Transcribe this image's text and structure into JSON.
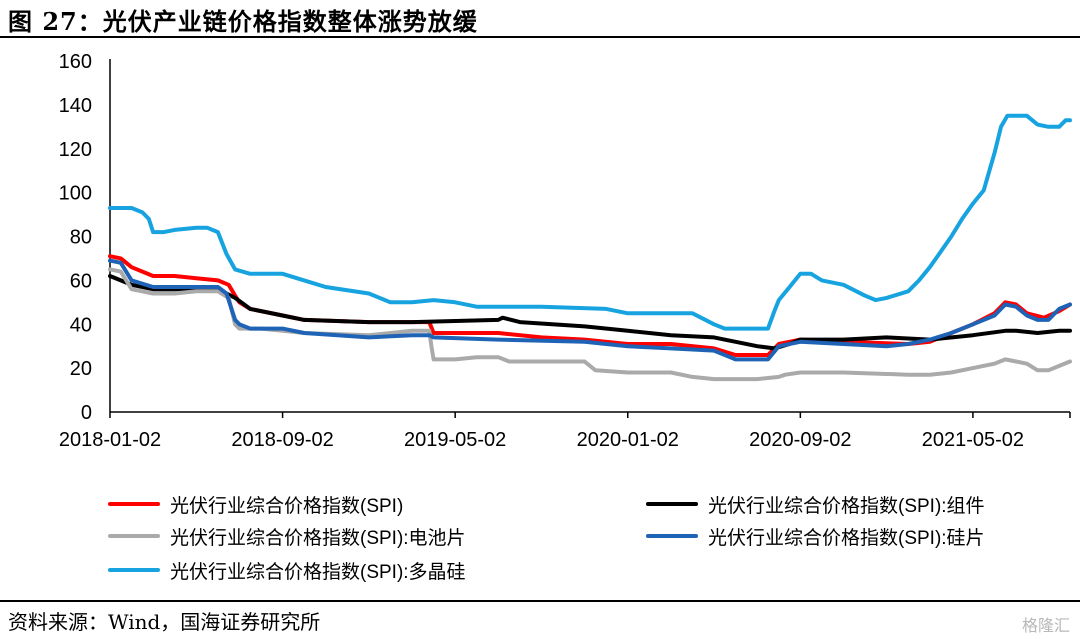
{
  "title": "图 27：光伏产业链价格指数整体涨势放缓",
  "source": "资料来源：Wind，国海证券研究所",
  "watermark": "格隆汇",
  "chart_data": {
    "type": "line",
    "y_ticks": [
      "0",
      "20",
      "40",
      "60",
      "80",
      "100",
      "120",
      "140",
      "160"
    ],
    "ylim": [
      0,
      160
    ],
    "x_ticks": [
      "2018-01-02",
      "2018-09-02",
      "2019-05-02",
      "2020-01-02",
      "2020-09-02",
      "2021-05-02"
    ],
    "x_tick_positions": [
      0,
      8,
      16,
      24,
      32,
      40
    ],
    "x_range": [
      0,
      44.5
    ],
    "grid": false,
    "legend_placement": "bottom",
    "series": [
      {
        "name": "光伏行业综合价格指数(SPI)",
        "color": "#ff0000",
        "points": [
          [
            0,
            71
          ],
          [
            0.5,
            70
          ],
          [
            1,
            66
          ],
          [
            2,
            62
          ],
          [
            3,
            62
          ],
          [
            4,
            61
          ],
          [
            5,
            60
          ],
          [
            5.5,
            58
          ],
          [
            5.8,
            53
          ],
          [
            6,
            50
          ],
          [
            6.5,
            47
          ],
          [
            8,
            44
          ],
          [
            9,
            42
          ],
          [
            12,
            41
          ],
          [
            14,
            41
          ],
          [
            14.8,
            41
          ],
          [
            15,
            36
          ],
          [
            17,
            36
          ],
          [
            18,
            36
          ],
          [
            20,
            34
          ],
          [
            22,
            33
          ],
          [
            24,
            31
          ],
          [
            26,
            31
          ],
          [
            28,
            29
          ],
          [
            29,
            26
          ],
          [
            30.5,
            26
          ],
          [
            31,
            31
          ],
          [
            32,
            33
          ],
          [
            34,
            32
          ],
          [
            37,
            31
          ],
          [
            38,
            32
          ],
          [
            39,
            36
          ],
          [
            40,
            40
          ],
          [
            41,
            45
          ],
          [
            41.5,
            50
          ],
          [
            42,
            49
          ],
          [
            42.5,
            45
          ],
          [
            43.3,
            43
          ],
          [
            44,
            46
          ],
          [
            44.5,
            49
          ]
        ]
      },
      {
        "name": "光伏行业综合价格指数(SPI):组件",
        "color": "#000000",
        "points": [
          [
            0,
            62
          ],
          [
            1,
            58
          ],
          [
            2,
            56
          ],
          [
            3,
            56
          ],
          [
            4,
            56
          ],
          [
            5,
            56
          ],
          [
            5.8,
            52
          ],
          [
            6.5,
            47
          ],
          [
            8,
            44
          ],
          [
            9,
            42
          ],
          [
            12,
            41
          ],
          [
            14,
            41
          ],
          [
            18,
            42
          ],
          [
            18.2,
            43
          ],
          [
            19,
            41
          ],
          [
            22,
            39
          ],
          [
            24,
            37
          ],
          [
            26,
            35
          ],
          [
            28,
            34
          ],
          [
            29,
            32
          ],
          [
            30,
            30
          ],
          [
            30.8,
            29
          ],
          [
            31.5,
            31
          ],
          [
            32,
            33
          ],
          [
            34,
            33
          ],
          [
            36,
            34
          ],
          [
            38,
            33
          ],
          [
            40,
            35
          ],
          [
            41.5,
            37
          ],
          [
            42,
            37
          ],
          [
            43,
            36
          ],
          [
            44,
            37
          ],
          [
            44.5,
            37
          ]
        ]
      },
      {
        "name": "光伏行业综合价格指数(SPI):电池片",
        "color": "#aaaaaa",
        "points": [
          [
            0,
            65
          ],
          [
            0.5,
            64
          ],
          [
            1,
            56
          ],
          [
            2,
            54
          ],
          [
            3,
            54
          ],
          [
            4,
            55
          ],
          [
            5,
            55
          ],
          [
            5.5,
            52
          ],
          [
            5.8,
            40
          ],
          [
            6,
            38
          ],
          [
            7,
            38
          ],
          [
            8,
            37
          ],
          [
            9,
            36
          ],
          [
            12,
            35
          ],
          [
            14,
            37
          ],
          [
            14.8,
            37
          ],
          [
            14.9,
            30
          ],
          [
            15,
            24
          ],
          [
            16,
            24
          ],
          [
            17,
            25
          ],
          [
            18,
            25
          ],
          [
            18.5,
            23
          ],
          [
            20,
            23
          ],
          [
            22,
            23
          ],
          [
            22.5,
            19
          ],
          [
            24,
            18
          ],
          [
            26,
            18
          ],
          [
            27,
            16
          ],
          [
            28,
            15
          ],
          [
            30,
            15
          ],
          [
            31,
            16
          ],
          [
            31.3,
            17
          ],
          [
            32,
            18
          ],
          [
            34,
            18
          ],
          [
            37,
            17
          ],
          [
            38,
            17
          ],
          [
            39,
            18
          ],
          [
            40,
            20
          ],
          [
            41,
            22
          ],
          [
            41.5,
            24
          ],
          [
            42,
            23
          ],
          [
            42.5,
            22
          ],
          [
            43,
            19
          ],
          [
            43.5,
            19
          ],
          [
            44,
            21
          ],
          [
            44.5,
            23
          ]
        ]
      },
      {
        "name": "光伏行业综合价格指数(SPI):硅片",
        "color": "#1e63b5",
        "points": [
          [
            0,
            69
          ],
          [
            0.5,
            68
          ],
          [
            1,
            60
          ],
          [
            2,
            57
          ],
          [
            3,
            57
          ],
          [
            4,
            57
          ],
          [
            5,
            57
          ],
          [
            5.4,
            54
          ],
          [
            5.8,
            42
          ],
          [
            6,
            40
          ],
          [
            6.5,
            38
          ],
          [
            8,
            38
          ],
          [
            9,
            36
          ],
          [
            12,
            34
          ],
          [
            14,
            35
          ],
          [
            14.8,
            35
          ],
          [
            15,
            34
          ],
          [
            18,
            33
          ],
          [
            22,
            32
          ],
          [
            24,
            30
          ],
          [
            26,
            29
          ],
          [
            28,
            28
          ],
          [
            29,
            24
          ],
          [
            30.5,
            24
          ],
          [
            31,
            30
          ],
          [
            32,
            32
          ],
          [
            34,
            31
          ],
          [
            36,
            30
          ],
          [
            37,
            31
          ],
          [
            38,
            33
          ],
          [
            39,
            36
          ],
          [
            40,
            40
          ],
          [
            41,
            44
          ],
          [
            41.5,
            49
          ],
          [
            42,
            48
          ],
          [
            42.5,
            44
          ],
          [
            43,
            42
          ],
          [
            43.5,
            42
          ],
          [
            44,
            47
          ],
          [
            44.5,
            49
          ]
        ]
      },
      {
        "name": "光伏行业综合价格指数(SPI):多晶硅",
        "color": "#17a3e0",
        "points": [
          [
            0,
            93
          ],
          [
            1,
            93
          ],
          [
            1.5,
            91
          ],
          [
            1.8,
            88
          ],
          [
            2,
            82
          ],
          [
            2.5,
            82
          ],
          [
            3,
            83
          ],
          [
            4,
            84
          ],
          [
            4.5,
            84
          ],
          [
            5,
            82
          ],
          [
            5.4,
            72
          ],
          [
            5.8,
            65
          ],
          [
            6.5,
            63
          ],
          [
            8,
            63
          ],
          [
            9,
            60
          ],
          [
            10,
            57
          ],
          [
            12,
            54
          ],
          [
            13,
            50
          ],
          [
            14,
            50
          ],
          [
            15,
            51
          ],
          [
            16,
            50
          ],
          [
            17,
            48
          ],
          [
            20,
            48
          ],
          [
            23,
            47
          ],
          [
            24,
            45
          ],
          [
            26,
            45
          ],
          [
            27,
            45
          ],
          [
            28,
            40
          ],
          [
            28.5,
            38
          ],
          [
            30,
            38
          ],
          [
            30.5,
            38
          ],
          [
            30.8,
            46
          ],
          [
            31,
            51
          ],
          [
            31.5,
            57
          ],
          [
            32,
            63
          ],
          [
            32.5,
            63
          ],
          [
            33,
            60
          ],
          [
            34,
            58
          ],
          [
            35,
            53
          ],
          [
            35.5,
            51
          ],
          [
            36,
            52
          ],
          [
            37,
            55
          ],
          [
            37.5,
            60
          ],
          [
            38,
            66
          ],
          [
            38.5,
            73
          ],
          [
            39,
            80
          ],
          [
            39.5,
            88
          ],
          [
            40,
            95
          ],
          [
            40.5,
            101
          ],
          [
            41,
            118
          ],
          [
            41.3,
            130
          ],
          [
            41.6,
            135
          ],
          [
            42,
            135
          ],
          [
            42.5,
            135
          ],
          [
            43,
            131
          ],
          [
            43.5,
            130
          ],
          [
            44,
            130
          ],
          [
            44.3,
            133
          ],
          [
            44.5,
            133
          ]
        ]
      }
    ]
  }
}
